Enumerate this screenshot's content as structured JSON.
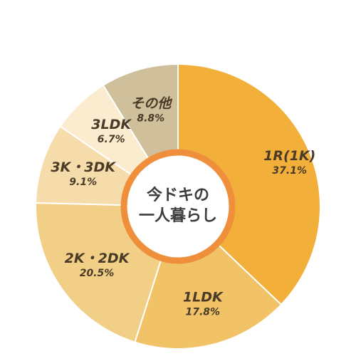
{
  "chart_data": {
    "type": "pie",
    "center_label": [
      "今ドキの",
      "一人暮らし"
    ],
    "slices": [
      {
        "label": "1R(1K)",
        "value": 37.1,
        "display": "37.1%",
        "color": "#f2b03a"
      },
      {
        "label": "1LDK",
        "value": 17.8,
        "display": "17.8%",
        "color": "#f1c266"
      },
      {
        "label": "2K・2DK",
        "value": 20.5,
        "display": "20.5%",
        "color": "#f2cf86"
      },
      {
        "label": "3K・3DK",
        "value": 9.1,
        "display": "9.1%",
        "color": "#f6dcaa"
      },
      {
        "label": "3LDK",
        "value": 6.7,
        "display": "6.7%",
        "color": "#fbecd0"
      },
      {
        "label": "その他",
        "value": 8.8,
        "display": "8.8%",
        "color": "#cfbf9b"
      }
    ],
    "ring_color": "#ef8f3c"
  }
}
